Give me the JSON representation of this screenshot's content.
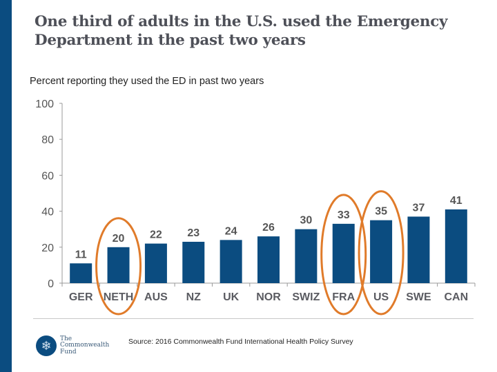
{
  "title": "One third of adults in the U.S. used the Emergency Department in the past two years",
  "subtitle": "Percent reporting they used the ED in past two years",
  "source": "Source: 2016 Commonwealth Fund International Health Policy Survey",
  "logo": {
    "icon": "snowflake-emblem-icon",
    "line1": "The",
    "line2": "Commonwealth",
    "line3": "Fund"
  },
  "colors": {
    "bar": "#0b4c80",
    "highlight": "#e07b2a",
    "accent_bar": "#0b4c80"
  },
  "chart_data": {
    "type": "bar",
    "title": "One third of adults in the U.S. used the Emergency Department in the past two years",
    "subtitle": "Percent reporting they used the ED in past two years",
    "categories": [
      "GER",
      "NETH",
      "AUS",
      "NZ",
      "UK",
      "NOR",
      "SWIZ",
      "FRA",
      "US",
      "SWE",
      "CAN"
    ],
    "values": [
      11,
      20,
      22,
      23,
      24,
      26,
      30,
      33,
      35,
      37,
      41
    ],
    "value_labels": [
      "11",
      "20",
      "22",
      "23",
      "24",
      "26",
      "30",
      "33",
      "35",
      "37",
      "41"
    ],
    "xlabel": "",
    "ylabel": "",
    "ylim": [
      0,
      100
    ],
    "yticks": [
      0,
      20,
      40,
      60,
      80,
      100
    ],
    "ytick_labels": [
      "0",
      "20",
      "40",
      "60",
      "80",
      "100"
    ],
    "grid": false,
    "legend": "none",
    "highlighted_categories": [
      "NETH",
      "FRA",
      "US"
    ]
  }
}
